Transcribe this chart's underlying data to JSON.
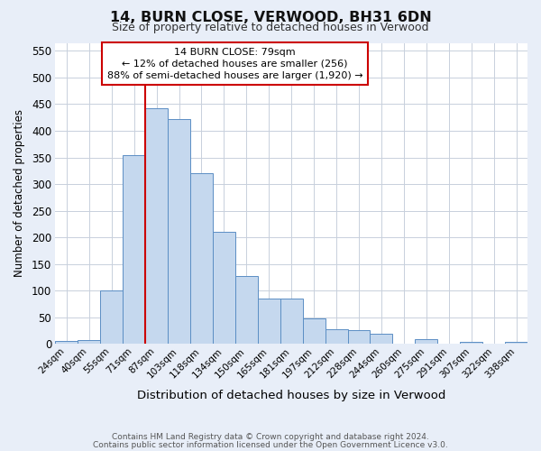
{
  "title": "14, BURN CLOSE, VERWOOD, BH31 6DN",
  "subtitle": "Size of property relative to detached houses in Verwood",
  "xlabel": "Distribution of detached houses by size in Verwood",
  "ylabel": "Number of detached properties",
  "categories": [
    "24sqm",
    "40sqm",
    "55sqm",
    "71sqm",
    "87sqm",
    "103sqm",
    "118sqm",
    "134sqm",
    "150sqm",
    "165sqm",
    "181sqm",
    "197sqm",
    "212sqm",
    "228sqm",
    "244sqm",
    "260sqm",
    "275sqm",
    "291sqm",
    "307sqm",
    "322sqm",
    "338sqm"
  ],
  "values": [
    5,
    7,
    101,
    355,
    443,
    422,
    321,
    210,
    128,
    85,
    85,
    47,
    28,
    25,
    19,
    0,
    9,
    0,
    4,
    0,
    3
  ],
  "bar_color": "#c5d8ee",
  "bar_edge_color": "#5b8ec4",
  "marker_line_color": "#cc0000",
  "annotation_line1": "14 BURN CLOSE: 79sqm",
  "annotation_line2": "← 12% of detached houses are smaller (256)",
  "annotation_line3": "88% of semi-detached houses are larger (1,920) →",
  "ylim": [
    0,
    565
  ],
  "yticks": [
    0,
    50,
    100,
    150,
    200,
    250,
    300,
    350,
    400,
    450,
    500,
    550
  ],
  "footer_line1": "Contains HM Land Registry data © Crown copyright and database right 2024.",
  "footer_line2": "Contains public sector information licensed under the Open Government Licence v3.0.",
  "bg_color": "#e8eef8",
  "plot_bg_color": "#ffffff",
  "grid_color": "#c8d0dc"
}
